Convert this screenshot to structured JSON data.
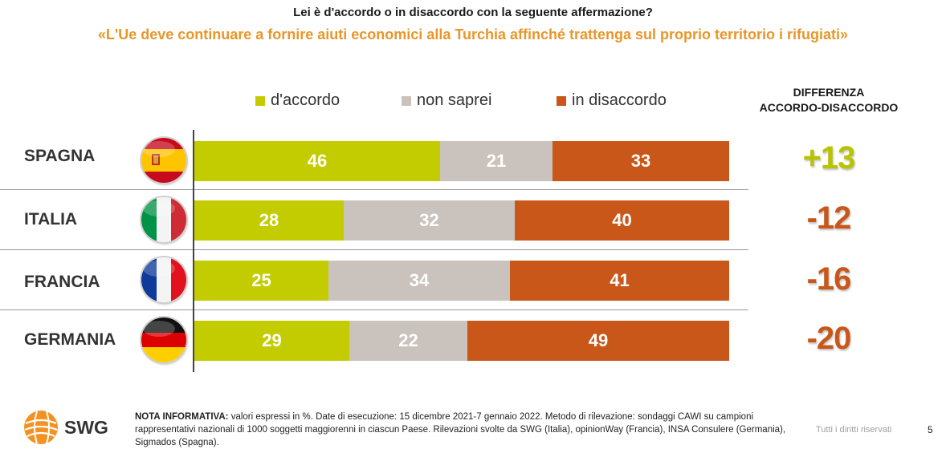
{
  "header": {
    "question": "Lei è d'accordo o in disaccordo con la seguente affermazione?",
    "statement": "«L'Ue deve continuare a fornire aiuti economici alla Turchia affinché trattenga sul proprio territorio i rifugiati»",
    "statement_color": "#E8962A"
  },
  "diff_header": {
    "line1": "DIFFERENZA",
    "line2": "ACCORDO-DISACCORDO"
  },
  "chart_data": {
    "type": "bar",
    "orientation": "horizontal",
    "stacked": true,
    "categories": [
      "SPAGNA",
      "ITALIA",
      "FRANCIA",
      "GERMANIA"
    ],
    "series": [
      {
        "name": "d'accordo",
        "color": "#C3CC00",
        "values": [
          46,
          28,
          25,
          29
        ]
      },
      {
        "name": "non saprei",
        "color": "#C9C2BD",
        "values": [
          21,
          32,
          34,
          22
        ]
      },
      {
        "name": "in disaccordo",
        "color": "#C9571A",
        "values": [
          33,
          40,
          41,
          49
        ]
      }
    ],
    "xlim": [
      0,
      100
    ],
    "legend": "top",
    "grid": false
  },
  "differences": [
    {
      "country": "SPAGNA",
      "value": "+13",
      "color": "#B8C400"
    },
    {
      "country": "ITALIA",
      "value": "-12",
      "color": "#C9571A"
    },
    {
      "country": "FRANCIA",
      "value": "-16",
      "color": "#C9571A"
    },
    {
      "country": "GERMANIA",
      "value": "-20",
      "color": "#C9571A"
    }
  ],
  "flags": [
    "flag-spain-icon",
    "flag-italy-icon",
    "flag-france-icon",
    "flag-germany-icon"
  ],
  "footer": {
    "logo_text": "SWG",
    "note_title": "NOTA INFORMATIVA:",
    "note_text": "valori espressi in %. Date di esecuzione: 15 dicembre 2021-7 gennaio 2022. Metodo di rilevazione: sondaggi CAWI su campioni rappresentativi nazionali di 1000 soggetti maggiorenni in ciascun Paese. Rilevazioni svolte da SWG (Italia), opinionWay (Francia), INSA Consulere (Germania), Sigmados (Spagna).",
    "rights": "Tutti i diritti riservati",
    "page_number": "5"
  }
}
